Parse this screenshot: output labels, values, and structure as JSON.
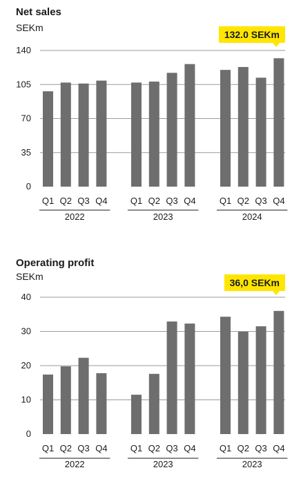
{
  "chart_data": [
    {
      "type": "bar",
      "title": "Net sales",
      "ylabel": "SEKm",
      "ylim": [
        0,
        140
      ],
      "yticks": [
        0,
        35,
        70,
        105,
        140
      ],
      "grid": true,
      "callout": "132.0 SEKm",
      "bar_color": "#6e6e6e",
      "callout_color": "#ffe600",
      "groups": [
        {
          "label": "2022",
          "categories": [
            "Q1",
            "Q2",
            "Q3",
            "Q4"
          ],
          "values": [
            98,
            107,
            106,
            109
          ]
        },
        {
          "label": "2023",
          "categories": [
            "Q1",
            "Q2",
            "Q3",
            "Q4"
          ],
          "values": [
            107,
            108,
            117,
            126
          ]
        },
        {
          "label": "2024",
          "categories": [
            "Q1",
            "Q2",
            "Q3",
            "Q4"
          ],
          "values": [
            120,
            123,
            112,
            132
          ]
        }
      ]
    },
    {
      "type": "bar",
      "title": "Operating profit",
      "ylabel": "SEKm",
      "ylim": [
        0,
        40
      ],
      "yticks": [
        0,
        10,
        20,
        30,
        40
      ],
      "grid": true,
      "callout": "36,0 SEKm",
      "bar_color": "#6e6e6e",
      "callout_color": "#ffe600",
      "groups": [
        {
          "label": "2022",
          "categories": [
            "Q1",
            "Q2",
            "Q3",
            "Q4"
          ],
          "values": [
            17.4,
            19.8,
            22.3,
            17.8
          ]
        },
        {
          "label": "2023",
          "categories": [
            "Q1",
            "Q2",
            "Q3",
            "Q4"
          ],
          "values": [
            11.5,
            17.6,
            32.9,
            32.3
          ]
        },
        {
          "label": "2023",
          "categories": [
            "Q1",
            "Q2",
            "Q3",
            "Q4"
          ],
          "values": [
            34.3,
            29.9,
            31.5,
            36.0
          ]
        }
      ]
    }
  ]
}
